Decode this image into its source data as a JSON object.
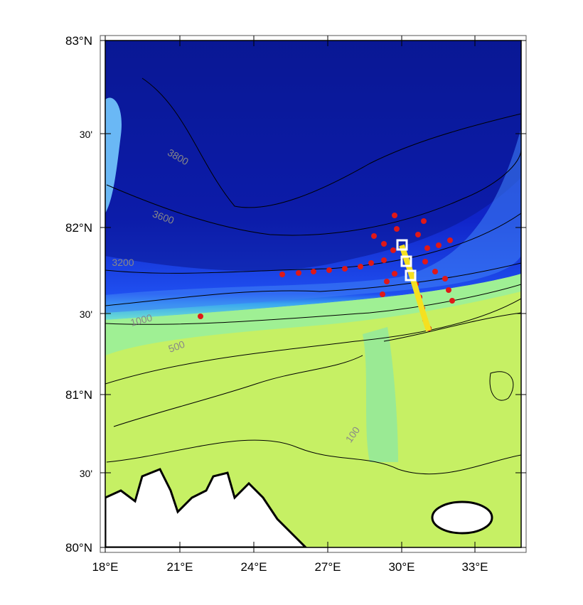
{
  "map": {
    "lat_labels": [
      "83°N",
      "30'",
      "82°N",
      "30'",
      "81°N",
      "30'",
      "80°N"
    ],
    "lon_labels": [
      "18°E",
      "21°E",
      "24°E",
      "27°E",
      "30°E",
      "33°E"
    ],
    "contour_labels": [
      "3800",
      "3600",
      "3200",
      "1000",
      "500",
      "100"
    ]
  }
}
